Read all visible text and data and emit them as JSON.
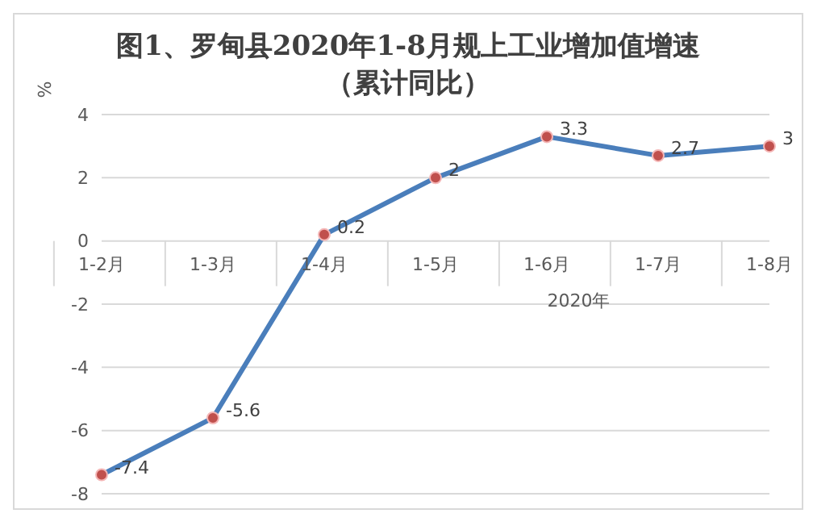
{
  "chart_data": {
    "type": "line",
    "title": "图1、罗甸县2020年1-8月规上工业增加值增速",
    "subtitle": "（累计同比）",
    "xlabel": "2020年",
    "ylabel": "%",
    "categories": [
      "1-2月",
      "1-3月",
      "1-4月",
      "1-5月",
      "1-6月",
      "1-7月",
      "1-8月"
    ],
    "series": [
      {
        "color": "#4a7ebb",
        "values": [
          -7.4,
          -5.6,
          0.2,
          2,
          3.3,
          2.7,
          3
        ]
      }
    ],
    "ylim": [
      -8,
      4
    ],
    "yticks": [
      -8,
      -6,
      -4,
      -2,
      0,
      2,
      4
    ],
    "grid": "y",
    "marker": "circle",
    "data_labels": true,
    "legend": false
  }
}
